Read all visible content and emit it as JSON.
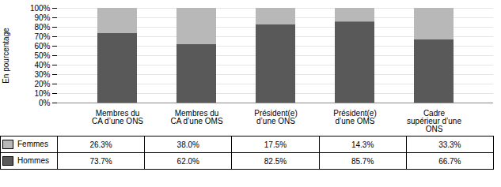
{
  "chart_data": {
    "type": "bar",
    "stacked": true,
    "categories": [
      "Membres du\nCA d’une ONS",
      "Membres du\nCA d’une OMS",
      "Président(e)\nd’une ONS",
      "Président(e)\nd’une OMS",
      "Cadre\nsupérieur d’une\nONS"
    ],
    "series": [
      {
        "name": "Hommes",
        "color": "#595959",
        "values": [
          73.7,
          62.0,
          82.5,
          85.7,
          66.7
        ],
        "value_labels": [
          "73.7%",
          "62.0%",
          "82.5%",
          "85.7%",
          "66.7%"
        ]
      },
      {
        "name": "Femmes",
        "color": "#b8b8b8",
        "values": [
          26.3,
          38.0,
          17.5,
          14.3,
          33.3
        ],
        "value_labels": [
          "26.3%",
          "38.0%",
          "17.5%",
          "14.3%",
          "33.3%"
        ]
      }
    ],
    "ylabel": "En pourcentage",
    "ylim": [
      0,
      100
    ],
    "yticks": [
      {
        "value": 0,
        "label": "0%"
      },
      {
        "value": 10,
        "label": "10%"
      },
      {
        "value": 20,
        "label": "20%"
      },
      {
        "value": 30,
        "label": "30%"
      },
      {
        "value": 40,
        "label": "40%"
      },
      {
        "value": 50,
        "label": "50%"
      },
      {
        "value": 60,
        "label": "60%"
      },
      {
        "value": 70,
        "label": "70%"
      },
      {
        "value": 80,
        "label": "80%"
      },
      {
        "value": 90,
        "label": "90%"
      },
      {
        "value": 100,
        "label": "100%"
      }
    ],
    "grid": true,
    "data_labels": true,
    "legend": "bottom"
  }
}
